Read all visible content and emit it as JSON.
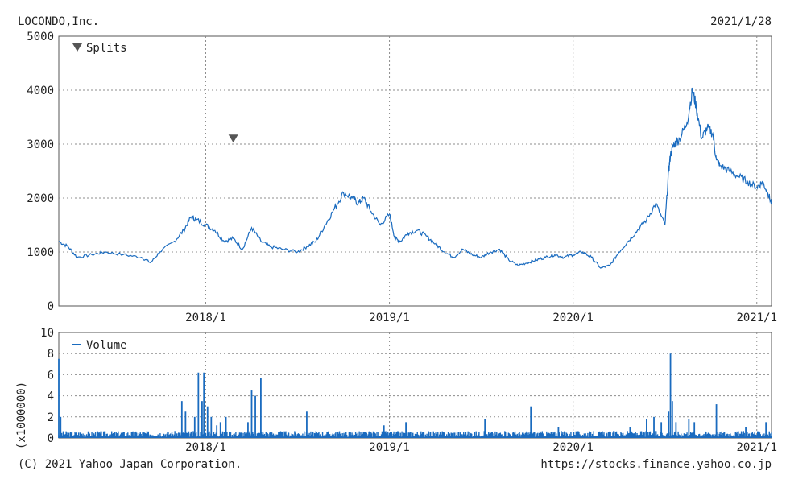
{
  "header": {
    "company": "LOCONDO,Inc.",
    "date": "2021/1/28"
  },
  "footer": {
    "copyright": "(C) 2021 Yahoo Japan Corporation.",
    "url": "https://stocks.finance.yahoo.co.jp"
  },
  "colors": {
    "line": "#1a6bbf",
    "grid": "#8c8c8c",
    "axis": "#555555",
    "split_marker": "#555555"
  },
  "chart_data": [
    {
      "type": "line",
      "legend": "Splits",
      "legend_position": "top-left",
      "grid": true,
      "x_unit": "year",
      "xlim": [
        2017.2,
        2021.08
      ],
      "ylim": [
        0,
        5000
      ],
      "yticks": [
        0,
        1000,
        2000,
        3000,
        4000,
        5000
      ],
      "xticks": [
        {
          "x": 2018.0,
          "label": "2018/1"
        },
        {
          "x": 2019.0,
          "label": "2019/1"
        },
        {
          "x": 2020.0,
          "label": "2020/1"
        },
        {
          "x": 2021.0,
          "label": "2021/1"
        }
      ],
      "splits": [
        {
          "x": 2018.15,
          "y": 3100
        }
      ],
      "series": [
        {
          "x": [
            2017.2,
            2017.25,
            2017.3,
            2017.38,
            2017.45,
            2017.55,
            2017.65,
            2017.7,
            2017.75,
            2017.83,
            2017.88,
            2017.92,
            2017.95,
            2018.0,
            2018.05,
            2018.1,
            2018.15,
            2018.2,
            2018.25,
            2018.3,
            2018.35,
            2018.42,
            2018.5,
            2018.55,
            2018.6,
            2018.65,
            2018.7,
            2018.75,
            2018.8,
            2018.83,
            2018.86,
            2018.9,
            2018.95,
            2019.0,
            2019.03,
            2019.06,
            2019.1,
            2019.15,
            2019.2,
            2019.25,
            2019.3,
            2019.35,
            2019.4,
            2019.45,
            2019.5,
            2019.55,
            2019.6,
            2019.65,
            2019.7,
            2019.75,
            2019.8,
            2019.85,
            2019.9,
            2019.95,
            2020.0,
            2020.05,
            2020.1,
            2020.15,
            2020.2,
            2020.25,
            2020.3,
            2020.35,
            2020.4,
            2020.45,
            2020.5,
            2020.52,
            2020.53,
            2020.55,
            2020.58,
            2020.62,
            2020.65,
            2020.67,
            2020.7,
            2020.73,
            2020.76,
            2020.78,
            2020.8,
            2020.85,
            2020.9,
            2020.95,
            2021.0,
            2021.03,
            2021.06,
            2021.08
          ],
          "y": [
            1200,
            1100,
            900,
            950,
            1000,
            950,
            900,
            800,
            1000,
            1200,
            1400,
            1650,
            1600,
            1500,
            1400,
            1200,
            1250,
            1050,
            1450,
            1200,
            1100,
            1050,
            1000,
            1100,
            1200,
            1500,
            1800,
            2100,
            2000,
            1900,
            2000,
            1750,
            1500,
            1700,
            1250,
            1200,
            1350,
            1400,
            1300,
            1150,
            1000,
            900,
            1050,
            950,
            900,
            1000,
            1050,
            850,
            750,
            800,
            850,
            900,
            950,
            900,
            950,
            1000,
            900,
            700,
            750,
            1000,
            1200,
            1400,
            1600,
            1900,
            1500,
            2500,
            2800,
            3000,
            3100,
            3400,
            4000,
            3700,
            3100,
            3300,
            3200,
            2700,
            2600,
            2500,
            2400,
            2300,
            2200,
            2300,
            2100,
            1900
          ]
        }
      ]
    },
    {
      "type": "bar",
      "legend": "Volume",
      "legend_position": "top-left",
      "grid": true,
      "ylabel": "(x1000000)",
      "x_unit": "year",
      "xlim": [
        2017.2,
        2021.08
      ],
      "ylim": [
        0,
        10
      ],
      "yticks": [
        0,
        2,
        4,
        6,
        8,
        10
      ],
      "xticks": [
        {
          "x": 2018.0,
          "label": "2018/1"
        },
        {
          "x": 2019.0,
          "label": "2019/1"
        },
        {
          "x": 2020.0,
          "label": "2020/1"
        },
        {
          "x": 2021.0,
          "label": "2021/1"
        }
      ],
      "base_level": 0.35,
      "spikes": [
        {
          "x": 2017.2,
          "v": 7.5
        },
        {
          "x": 2017.21,
          "v": 2.0
        },
        {
          "x": 2017.87,
          "v": 3.5
        },
        {
          "x": 2017.89,
          "v": 2.5
        },
        {
          "x": 2017.94,
          "v": 2.0
        },
        {
          "x": 2017.96,
          "v": 6.2
        },
        {
          "x": 2017.98,
          "v": 3.5
        },
        {
          "x": 2017.99,
          "v": 6.2
        },
        {
          "x": 2018.01,
          "v": 3.0
        },
        {
          "x": 2018.03,
          "v": 2.0
        },
        {
          "x": 2018.06,
          "v": 1.2
        },
        {
          "x": 2018.08,
          "v": 1.5
        },
        {
          "x": 2018.11,
          "v": 2.0
        },
        {
          "x": 2018.23,
          "v": 1.5
        },
        {
          "x": 2018.25,
          "v": 4.5
        },
        {
          "x": 2018.27,
          "v": 4.0
        },
        {
          "x": 2018.3,
          "v": 5.7
        },
        {
          "x": 2018.55,
          "v": 2.5
        },
        {
          "x": 2018.97,
          "v": 1.2
        },
        {
          "x": 2019.09,
          "v": 1.5
        },
        {
          "x": 2019.52,
          "v": 1.8
        },
        {
          "x": 2019.77,
          "v": 3.0
        },
        {
          "x": 2019.92,
          "v": 1.0
        },
        {
          "x": 2020.31,
          "v": 1.0
        },
        {
          "x": 2020.4,
          "v": 1.8
        },
        {
          "x": 2020.44,
          "v": 2.0
        },
        {
          "x": 2020.48,
          "v": 1.5
        },
        {
          "x": 2020.52,
          "v": 2.5
        },
        {
          "x": 2020.53,
          "v": 8.0
        },
        {
          "x": 2020.54,
          "v": 3.5
        },
        {
          "x": 2020.56,
          "v": 1.5
        },
        {
          "x": 2020.63,
          "v": 1.8
        },
        {
          "x": 2020.66,
          "v": 1.5
        },
        {
          "x": 2020.78,
          "v": 3.2
        },
        {
          "x": 2020.94,
          "v": 1.0
        },
        {
          "x": 2021.05,
          "v": 1.5
        }
      ]
    }
  ]
}
